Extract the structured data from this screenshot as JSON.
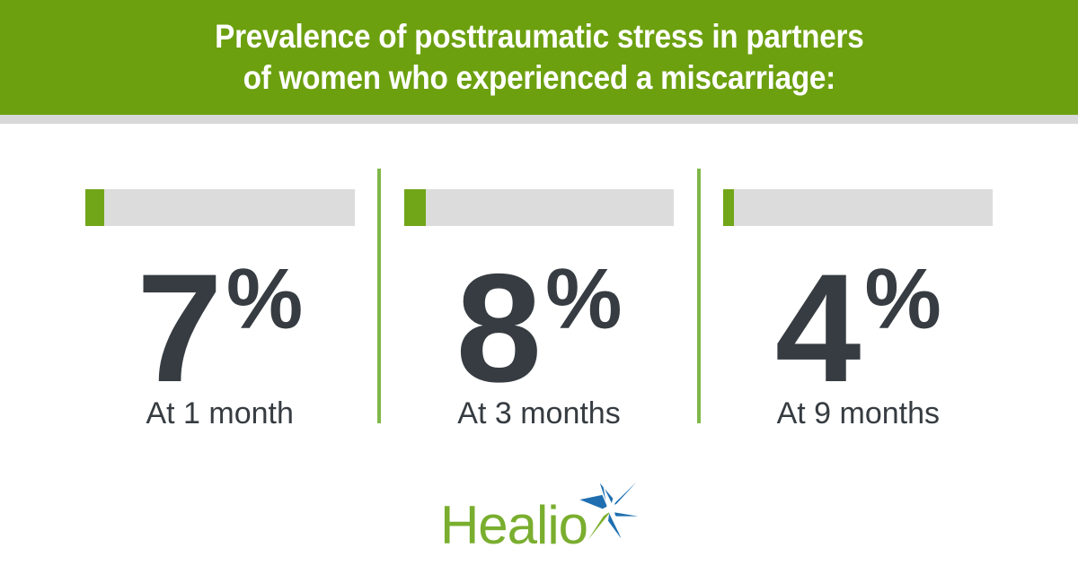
{
  "header": {
    "title_line1": "Prevalence of posttraumatic stress in partners",
    "title_line2": "of women who experienced a miscarriage:"
  },
  "chart_data": {
    "type": "bar",
    "title": "Prevalence of posttraumatic stress in partners of women who experienced a miscarriage:",
    "categories": [
      "At 1 month",
      "At 3 months",
      "At 9 months"
    ],
    "values": [
      7,
      8,
      4
    ],
    "unit": "%",
    "value_range": [
      0,
      100
    ],
    "orientation": "horizontal",
    "legend": "none",
    "grid": false,
    "accent_color": "#71A619",
    "track_color": "#DCDCDC"
  },
  "stats": [
    {
      "value": "7",
      "unit": "%",
      "label": "At 1 month",
      "fill_pct": 7
    },
    {
      "value": "8",
      "unit": "%",
      "label": "At 3 months",
      "fill_pct": 8
    },
    {
      "value": "4",
      "unit": "%",
      "label": "At 9 months",
      "fill_pct": 4
    }
  ],
  "footer": {
    "logo_text": "Healio"
  },
  "colors": {
    "header_green": "#6CA00F",
    "divider_green": "#7FB84A",
    "bar_fill_green": "#71A619",
    "bar_track_gray": "#DCDCDC",
    "header_strip_gray": "#D8D8D8",
    "stat_charcoal": "#363C41",
    "logo_green": "#79AE2E",
    "logo_blue": "#1F6FB0",
    "title_white": "#FFFFFF"
  }
}
